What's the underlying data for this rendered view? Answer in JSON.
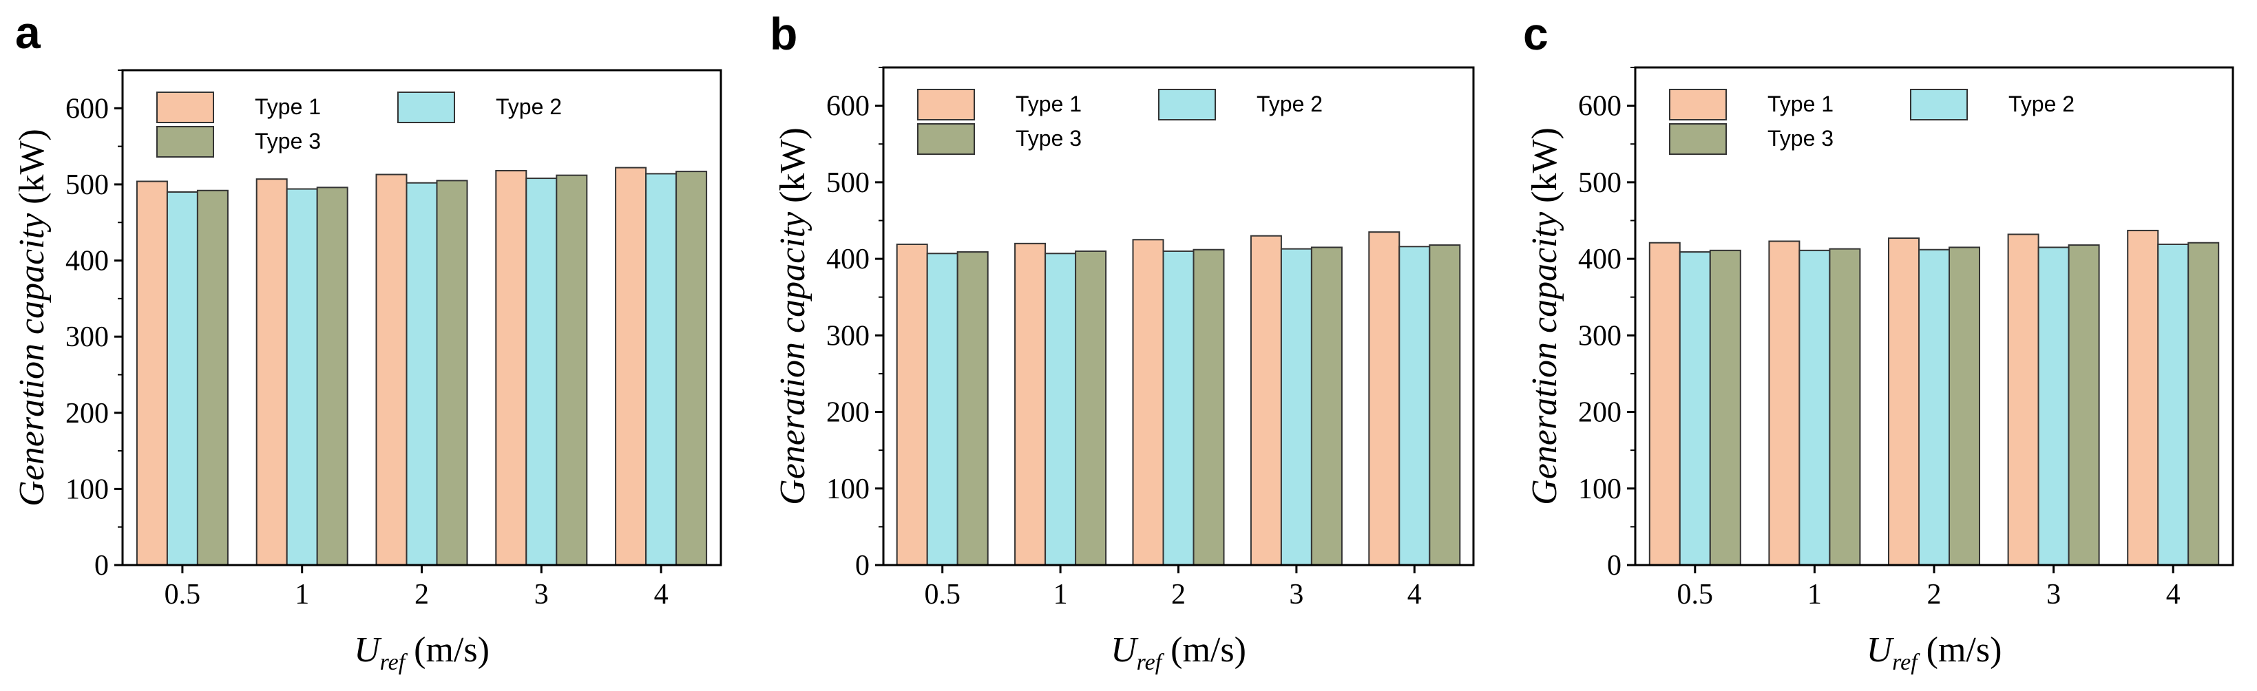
{
  "colors": {
    "type1": "#F8C4A4",
    "type2": "#A6E4EA",
    "type3": "#A6AE87",
    "axis": "#000000"
  },
  "chart_data": [
    {
      "panel": "a",
      "type": "bar",
      "categories": [
        "0.5",
        "1",
        "2",
        "3",
        "4"
      ],
      "series": [
        {
          "name": "Type 1",
          "values": [
            504,
            507,
            513,
            518,
            522
          ]
        },
        {
          "name": "Type 2",
          "values": [
            490,
            494,
            502,
            508,
            514
          ]
        },
        {
          "name": "Type 3",
          "values": [
            492,
            496,
            505,
            512,
            517
          ]
        }
      ],
      "ylabel": "Generation capacity (kW)",
      "ylabel_main": "Generation capacity",
      "ylabel_unit": " (kW)",
      "xlabel": "U_ref (m/s)",
      "xlabel_base": "U",
      "xlabel_sub": "ref",
      "xlabel_unit": " (m/s)",
      "ylim": [
        0,
        650
      ],
      "yticks": [
        "0",
        "100",
        "200",
        "300",
        "400",
        "500",
        "600"
      ],
      "legend_position": "top-left"
    },
    {
      "panel": "b",
      "type": "bar",
      "categories": [
        "0.5",
        "1",
        "2",
        "3",
        "4"
      ],
      "series": [
        {
          "name": "Type 1",
          "values": [
            419,
            420,
            425,
            430,
            435
          ]
        },
        {
          "name": "Type 2",
          "values": [
            407,
            407,
            410,
            413,
            416
          ]
        },
        {
          "name": "Type 3",
          "values": [
            409,
            410,
            412,
            415,
            418
          ]
        }
      ],
      "ylabel": "Generation capacity (kW)",
      "ylabel_main": "Generation capacity",
      "ylabel_unit": " (kW)",
      "xlabel": "U_ref (m/s)",
      "xlabel_base": "U",
      "xlabel_sub": "ref",
      "xlabel_unit": " (m/s)",
      "ylim": [
        0,
        650
      ],
      "yticks": [
        "0",
        "100",
        "200",
        "300",
        "400",
        "500",
        "600"
      ],
      "legend_position": "top-left"
    },
    {
      "panel": "c",
      "type": "bar",
      "categories": [
        "0.5",
        "1",
        "2",
        "3",
        "4"
      ],
      "series": [
        {
          "name": "Type 1",
          "values": [
            421,
            423,
            427,
            432,
            437
          ]
        },
        {
          "name": "Type 2",
          "values": [
            409,
            411,
            412,
            415,
            419
          ]
        },
        {
          "name": "Type 3",
          "values": [
            411,
            413,
            415,
            418,
            421
          ]
        }
      ],
      "ylabel": "Generation capacity (kW)",
      "ylabel_main": "Generation capacity",
      "ylabel_unit": " (kW)",
      "xlabel": "U_ref (m/s)",
      "xlabel_base": "U",
      "xlabel_sub": "ref",
      "xlabel_unit": " (m/s)",
      "ylim": [
        0,
        650
      ],
      "yticks": [
        "0",
        "100",
        "200",
        "300",
        "400",
        "500",
        "600"
      ],
      "legend_position": "top-left"
    }
  ]
}
